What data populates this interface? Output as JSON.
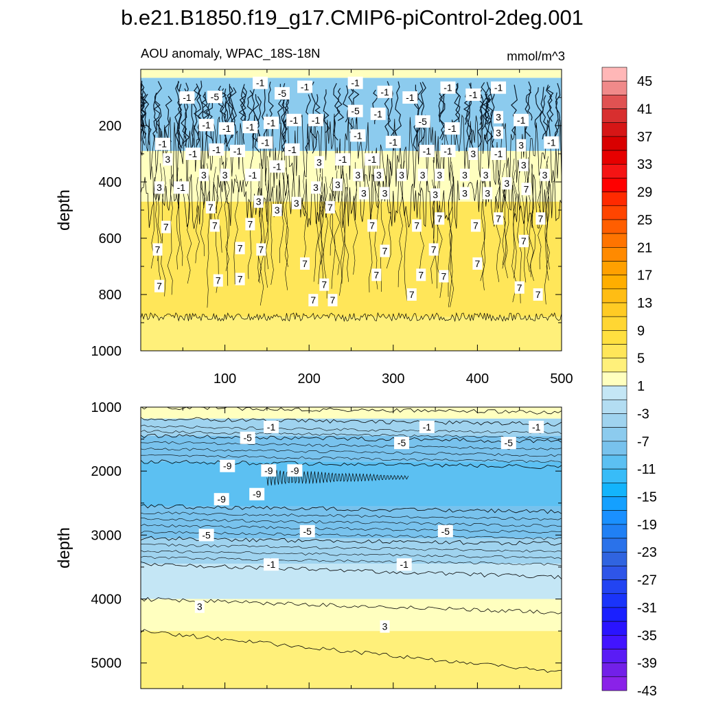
{
  "chart_data": {
    "type": "heatmap",
    "title": "b.e21.B1850.f19_g17.CMIP6-piControl-2deg.001",
    "subtitle": "AOU anomaly, WPAC_18S-18N",
    "units": "mmol/m^3",
    "panels": [
      {
        "name": "upper-ocean",
        "ylabel": "depth",
        "xlabel": "",
        "xlim": [
          0,
          500
        ],
        "ylim": [
          1000,
          0
        ],
        "x_ticks": [
          100,
          200,
          300,
          400,
          500
        ],
        "y_ticks": [
          200,
          400,
          600,
          800,
          1000
        ],
        "bands": [
          {
            "depth_top": 30,
            "depth_bottom": 290,
            "value": -5
          },
          {
            "depth_top": 290,
            "depth_bottom": 470,
            "value": 3
          },
          {
            "depth_top": 470,
            "depth_bottom": 880,
            "value": 7
          },
          {
            "depth_top": 880,
            "depth_bottom": 1000,
            "value": 5
          }
        ],
        "contour_labels": [
          {
            "x": 142,
            "depth": 48,
            "text": "-1"
          },
          {
            "x": 255,
            "depth": 48,
            "text": "-1"
          },
          {
            "x": 195,
            "depth": 62,
            "text": "-1"
          },
          {
            "x": 168,
            "depth": 85,
            "text": "-5"
          },
          {
            "x": 55,
            "depth": 100,
            "text": "-1"
          },
          {
            "x": 88,
            "depth": 98,
            "text": "-5"
          },
          {
            "x": 255,
            "depth": 148,
            "text": "-5"
          },
          {
            "x": 290,
            "depth": 80,
            "text": "-1"
          },
          {
            "x": 320,
            "depth": 100,
            "text": "-1"
          },
          {
            "x": 365,
            "depth": 65,
            "text": "-1"
          },
          {
            "x": 395,
            "depth": 90,
            "text": "-1"
          },
          {
            "x": 425,
            "depth": 65,
            "text": "-1"
          },
          {
            "x": 78,
            "depth": 198,
            "text": "-1"
          },
          {
            "x": 102,
            "depth": 210,
            "text": "-1"
          },
          {
            "x": 130,
            "depth": 205,
            "text": "-1"
          },
          {
            "x": 155,
            "depth": 190,
            "text": "-1"
          },
          {
            "x": 182,
            "depth": 180,
            "text": "-1"
          },
          {
            "x": 208,
            "depth": 180,
            "text": "-1"
          },
          {
            "x": 282,
            "depth": 158,
            "text": "-1"
          },
          {
            "x": 335,
            "depth": 185,
            "text": "-5"
          },
          {
            "x": 370,
            "depth": 210,
            "text": "-1"
          },
          {
            "x": 425,
            "depth": 170,
            "text": "3"
          },
          {
            "x": 452,
            "depth": 180,
            "text": "-1"
          },
          {
            "x": 26,
            "depth": 265,
            "text": "-1"
          },
          {
            "x": 62,
            "depth": 300,
            "text": "-1"
          },
          {
            "x": 90,
            "depth": 285,
            "text": "-1"
          },
          {
            "x": 115,
            "depth": 290,
            "text": "-1"
          },
          {
            "x": 148,
            "depth": 260,
            "text": "-1"
          },
          {
            "x": 180,
            "depth": 285,
            "text": "-1"
          },
          {
            "x": 258,
            "depth": 235,
            "text": "-1"
          },
          {
            "x": 300,
            "depth": 258,
            "text": "-1"
          },
          {
            "x": 340,
            "depth": 290,
            "text": "-1"
          },
          {
            "x": 365,
            "depth": 290,
            "text": "-1"
          },
          {
            "x": 425,
            "depth": 225,
            "text": "3"
          },
          {
            "x": 452,
            "depth": 270,
            "text": "3"
          },
          {
            "x": 488,
            "depth": 260,
            "text": "-1"
          },
          {
            "x": 32,
            "depth": 320,
            "text": "3"
          },
          {
            "x": 212,
            "depth": 330,
            "text": "3"
          },
          {
            "x": 240,
            "depth": 320,
            "text": "-1"
          },
          {
            "x": 275,
            "depth": 320,
            "text": "-1"
          },
          {
            "x": 395,
            "depth": 300,
            "text": "3"
          },
          {
            "x": 425,
            "depth": 300,
            "text": "-1"
          },
          {
            "x": 455,
            "depth": 340,
            "text": "3"
          },
          {
            "x": 48,
            "depth": 420,
            "text": "-1"
          },
          {
            "x": 75,
            "depth": 375,
            "text": "3"
          },
          {
            "x": 100,
            "depth": 375,
            "text": "3"
          },
          {
            "x": 133,
            "depth": 375,
            "text": "-1"
          },
          {
            "x": 162,
            "depth": 345,
            "text": "-1"
          },
          {
            "x": 22,
            "depth": 420,
            "text": "3"
          },
          {
            "x": 208,
            "depth": 420,
            "text": "3"
          },
          {
            "x": 234,
            "depth": 410,
            "text": "3"
          },
          {
            "x": 258,
            "depth": 375,
            "text": "3"
          },
          {
            "x": 283,
            "depth": 375,
            "text": "3"
          },
          {
            "x": 310,
            "depth": 375,
            "text": "3"
          },
          {
            "x": 335,
            "depth": 375,
            "text": "3"
          },
          {
            "x": 355,
            "depth": 375,
            "text": "3"
          },
          {
            "x": 385,
            "depth": 375,
            "text": "3"
          },
          {
            "x": 410,
            "depth": 375,
            "text": "3"
          },
          {
            "x": 435,
            "depth": 405,
            "text": "3"
          },
          {
            "x": 458,
            "depth": 425,
            "text": "7"
          },
          {
            "x": 480,
            "depth": 375,
            "text": "3"
          },
          {
            "x": 140,
            "depth": 470,
            "text": "3"
          },
          {
            "x": 162,
            "depth": 500,
            "text": "3"
          },
          {
            "x": 185,
            "depth": 475,
            "text": "3"
          },
          {
            "x": 265,
            "depth": 440,
            "text": "3"
          },
          {
            "x": 290,
            "depth": 440,
            "text": "3"
          },
          {
            "x": 350,
            "depth": 445,
            "text": "3"
          },
          {
            "x": 385,
            "depth": 440,
            "text": "3"
          },
          {
            "x": 412,
            "depth": 440,
            "text": "3"
          },
          {
            "x": 83,
            "depth": 490,
            "text": "7"
          },
          {
            "x": 225,
            "depth": 490,
            "text": "7"
          },
          {
            "x": 30,
            "depth": 560,
            "text": "7"
          },
          {
            "x": 88,
            "depth": 555,
            "text": "7"
          },
          {
            "x": 130,
            "depth": 550,
            "text": "7"
          },
          {
            "x": 275,
            "depth": 555,
            "text": "7"
          },
          {
            "x": 328,
            "depth": 555,
            "text": "7"
          },
          {
            "x": 355,
            "depth": 530,
            "text": "7"
          },
          {
            "x": 398,
            "depth": 555,
            "text": "7"
          },
          {
            "x": 425,
            "depth": 530,
            "text": "7"
          },
          {
            "x": 475,
            "depth": 530,
            "text": "7"
          },
          {
            "x": 20,
            "depth": 640,
            "text": "7"
          },
          {
            "x": 118,
            "depth": 635,
            "text": "7"
          },
          {
            "x": 143,
            "depth": 640,
            "text": "7"
          },
          {
            "x": 290,
            "depth": 645,
            "text": "7"
          },
          {
            "x": 348,
            "depth": 640,
            "text": "7"
          },
          {
            "x": 455,
            "depth": 610,
            "text": "7"
          },
          {
            "x": 195,
            "depth": 690,
            "text": "7"
          },
          {
            "x": 400,
            "depth": 690,
            "text": "7"
          },
          {
            "x": 280,
            "depth": 730,
            "text": "7"
          },
          {
            "x": 333,
            "depth": 730,
            "text": "7"
          },
          {
            "x": 360,
            "depth": 735,
            "text": "7"
          },
          {
            "x": 92,
            "depth": 750,
            "text": "7"
          },
          {
            "x": 118,
            "depth": 745,
            "text": "7"
          },
          {
            "x": 22,
            "depth": 770,
            "text": "7"
          },
          {
            "x": 218,
            "depth": 765,
            "text": "7"
          },
          {
            "x": 450,
            "depth": 775,
            "text": "7"
          },
          {
            "x": 322,
            "depth": 800,
            "text": "7"
          },
          {
            "x": 472,
            "depth": 800,
            "text": "7"
          },
          {
            "x": 205,
            "depth": 820,
            "text": "7"
          },
          {
            "x": 228,
            "depth": 820,
            "text": "7"
          }
        ]
      },
      {
        "name": "deep-ocean",
        "ylabel": "depth",
        "xlabel": "",
        "xlim": [
          0,
          500
        ],
        "ylim": [
          5400,
          1000
        ],
        "y_ticks": [
          1000,
          2000,
          3000,
          4000,
          5000
        ],
        "bands": [
          {
            "depth_top": 1000,
            "depth_bottom": 1180,
            "value": 3
          },
          {
            "depth_top": 1180,
            "depth_bottom": 1450,
            "value": -3
          },
          {
            "depth_top": 1450,
            "depth_bottom": 1850,
            "value": -7
          },
          {
            "depth_top": 1850,
            "depth_bottom": 2550,
            "value": -9
          },
          {
            "depth_top": 2550,
            "depth_bottom": 3050,
            "value": -7
          },
          {
            "depth_top": 3050,
            "depth_bottom": 3450,
            "value": -3
          },
          {
            "depth_top": 3450,
            "depth_bottom": 4000,
            "value": 1
          },
          {
            "depth_top": 4000,
            "depth_bottom": 4500,
            "value": 3
          },
          {
            "depth_top": 4500,
            "depth_bottom": 5400,
            "value": 5
          }
        ],
        "contour_labels": [
          {
            "x": 155,
            "depth": 1310,
            "text": "-1"
          },
          {
            "x": 340,
            "depth": 1310,
            "text": "-1"
          },
          {
            "x": 470,
            "depth": 1310,
            "text": "-1"
          },
          {
            "x": 127,
            "depth": 1480,
            "text": "-5"
          },
          {
            "x": 310,
            "depth": 1560,
            "text": "-5"
          },
          {
            "x": 437,
            "depth": 1560,
            "text": "-5"
          },
          {
            "x": 103,
            "depth": 1920,
            "text": "-9"
          },
          {
            "x": 152,
            "depth": 1990,
            "text": "-9"
          },
          {
            "x": 183,
            "depth": 1990,
            "text": "-9"
          },
          {
            "x": 96,
            "depth": 2440,
            "text": "-9"
          },
          {
            "x": 138,
            "depth": 2360,
            "text": "-9"
          },
          {
            "x": 78,
            "depth": 3000,
            "text": "-5"
          },
          {
            "x": 198,
            "depth": 2940,
            "text": "-5"
          },
          {
            "x": 362,
            "depth": 2940,
            "text": "-5"
          },
          {
            "x": 155,
            "depth": 3460,
            "text": "-1"
          },
          {
            "x": 313,
            "depth": 3460,
            "text": "-1"
          },
          {
            "x": 70,
            "depth": 4120,
            "text": "3"
          },
          {
            "x": 290,
            "depth": 4430,
            "text": "3"
          }
        ]
      }
    ],
    "colorbar": {
      "labels": [
        "45",
        "41",
        "37",
        "33",
        "29",
        "25",
        "21",
        "17",
        "13",
        "9",
        "5",
        "1",
        "-3",
        "-7",
        "-11",
        "-15",
        "-19",
        "-23",
        "-27",
        "-31",
        "-35",
        "-39",
        "-43"
      ],
      "colors": [
        "#ffb7b7",
        "#f08a8a",
        "#e05252",
        "#d82f2f",
        "#d61616",
        "#d90000",
        "#e60000",
        "#f51414",
        "#ff0000",
        "#ff2a00",
        "#ff4500",
        "#ff5e00",
        "#ff7400",
        "#ff8a00",
        "#ffa000",
        "#ffae00",
        "#ffbd14",
        "#ffcb24",
        "#ffd633",
        "#ffe040",
        "#ffe659",
        "#fff07a",
        "#ffffbf",
        "#c4e6f5",
        "#b3ddf2",
        "#9fd3ef",
        "#8ccbee",
        "#78c2ed",
        "#5cc0f2",
        "#38bcf8",
        "#13b4fc",
        "#14a0ff",
        "#1a90ff",
        "#2080f4",
        "#2a72ea",
        "#3064e0",
        "#2e55e8",
        "#2244f2",
        "#1a34fa",
        "#1a20ff",
        "#2a14ff",
        "#4214ff",
        "#5a1cf5",
        "#7220e8",
        "#8a22e8"
      ]
    }
  }
}
